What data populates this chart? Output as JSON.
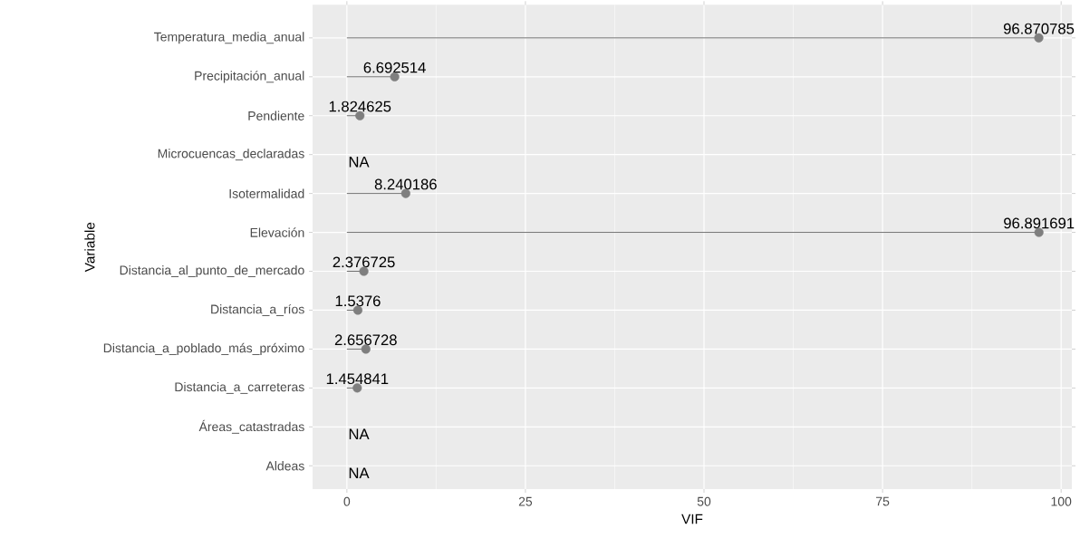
{
  "chart_data": {
    "type": "lollipop",
    "orientation": "horizontal",
    "xlabel": "VIF",
    "ylabel": "Variable",
    "categories": [
      "Temperatura_media_anual",
      "Precipitación_anual",
      "Pendiente",
      "Microcuencas_declaradas",
      "Isotermalidad",
      "Elevación",
      "Distancia_al_punto_de_mercado",
      "Distancia_a_ríos",
      "Distancia_a_poblado_más_próximo",
      "Distancia_a_carreteras",
      "Áreas_catastradas",
      "Aldeas"
    ],
    "values": [
      96.870785,
      6.692514,
      1.824625,
      null,
      8.240186,
      96.891691,
      2.376725,
      1.5376,
      2.656728,
      1.454841,
      null,
      null
    ],
    "value_labels": [
      "96.870785",
      "6.692514",
      "1.824625",
      "NA",
      "8.240186",
      "96.891691",
      "2.376725",
      "1.5376",
      "2.656728",
      "1.454841",
      "NA",
      "NA"
    ],
    "color": "#7f7f7f",
    "marker": "circle",
    "xlim": [
      -4.8,
      101.5
    ],
    "xticks": [
      0,
      25,
      50,
      75,
      100
    ],
    "grid": true
  }
}
